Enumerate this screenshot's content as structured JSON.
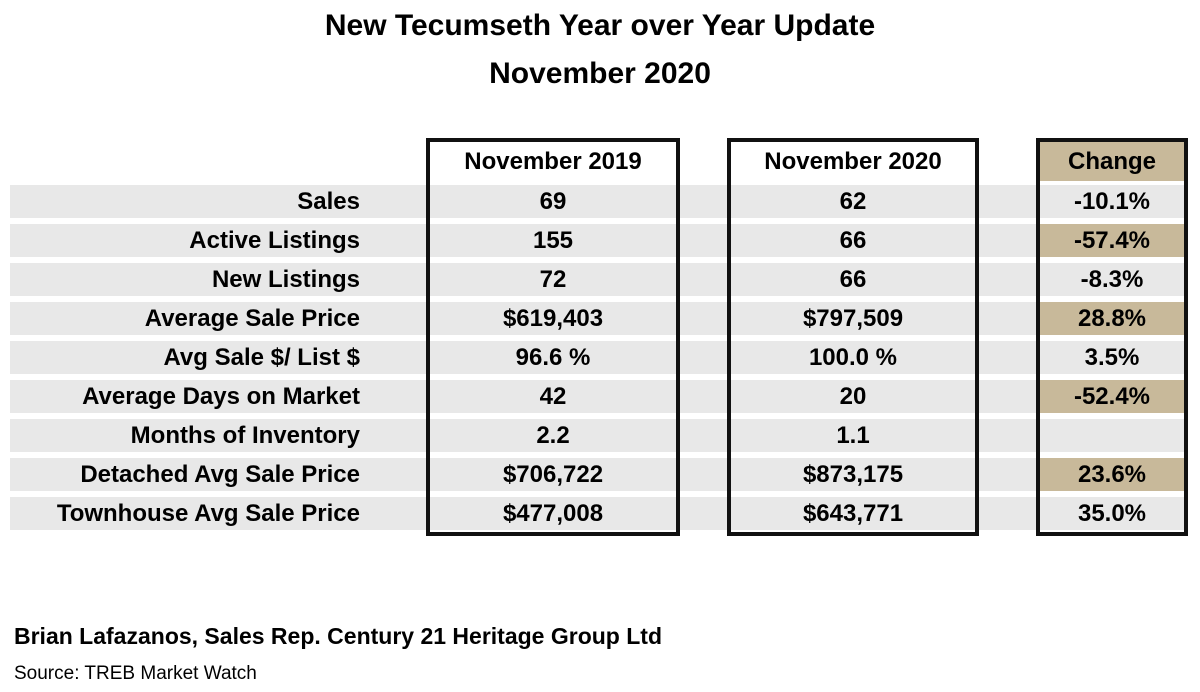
{
  "title": "New Tecumseth Year over Year Update",
  "subtitle": "November 2020",
  "columns": {
    "col2019": "November 2019",
    "col2020": "November 2020",
    "change": "Change"
  },
  "rows": [
    {
      "label": "Sales",
      "v2019": "69",
      "v2020": "62",
      "change": "-10.1%",
      "highlight": false
    },
    {
      "label": "Active Listings",
      "v2019": "155",
      "v2020": "66",
      "change": "-57.4%",
      "highlight": true
    },
    {
      "label": "New Listings",
      "v2019": "72",
      "v2020": "66",
      "change": "-8.3%",
      "highlight": false
    },
    {
      "label": "Average Sale Price",
      "v2019": "$619,403",
      "v2020": "$797,509",
      "change": "28.8%",
      "highlight": true
    },
    {
      "label": "Avg Sale $/ List $",
      "v2019": "96.6 %",
      "v2020": "100.0 %",
      "change": "3.5%",
      "highlight": false
    },
    {
      "label": "Average Days on Market",
      "v2019": "42",
      "v2020": "20",
      "change": "-52.4%",
      "highlight": true
    },
    {
      "label": "Months of Inventory",
      "v2019": "2.2",
      "v2020": "1.1",
      "change": "",
      "highlight": false
    },
    {
      "label": "Detached Avg Sale Price",
      "v2019": "$706,722",
      "v2020": "$873,175",
      "change": "23.6%",
      "highlight": true
    },
    {
      "label": "Townhouse Avg Sale Price",
      "v2019": "$477,008",
      "v2020": "$643,771",
      "change": "35.0%",
      "highlight": false
    }
  ],
  "footer": {
    "author": "Brian Lafazanos, Sales Rep. Century 21 Heritage Group Ltd",
    "source": "Source: TREB Market Watch"
  },
  "colors": {
    "band": "#e8e8e8",
    "highlight": "#c8b99a",
    "border": "#111111"
  }
}
